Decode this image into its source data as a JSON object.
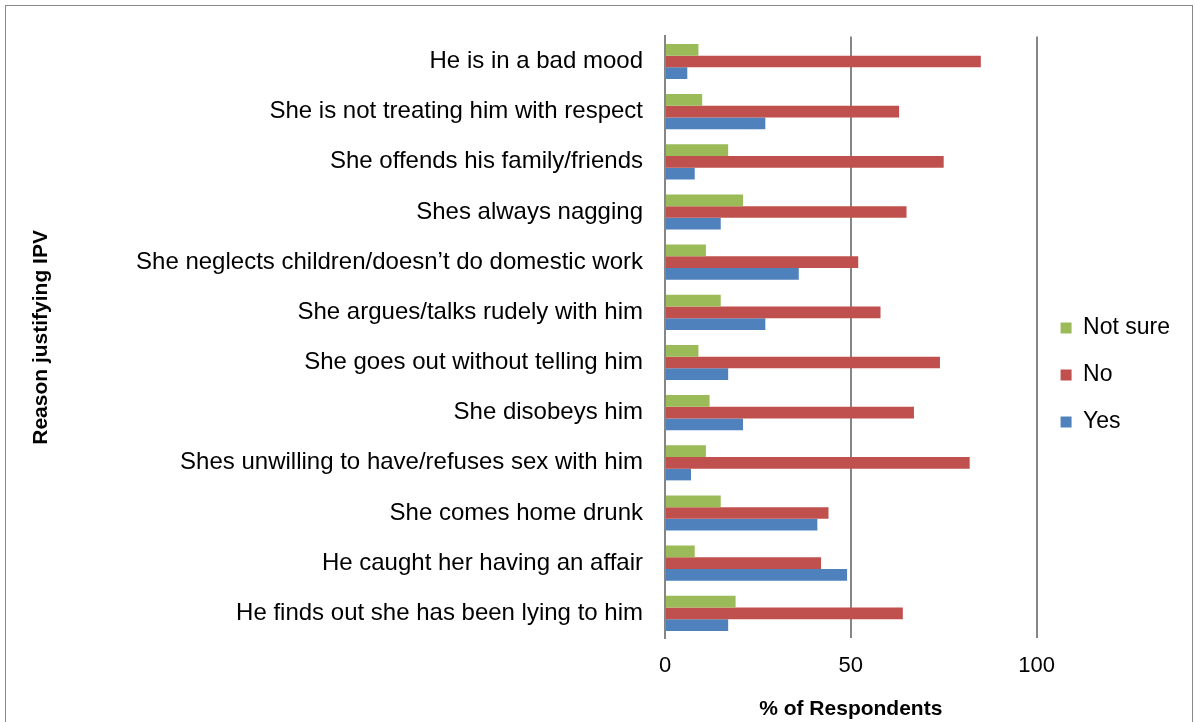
{
  "chart_data": {
    "type": "bar",
    "orientation": "horizontal",
    "xlabel": "% of Respondents",
    "ylabel": "Reason justifying IPV",
    "categories": [
      "He is in a bad mood",
      "She is not treating him with respect",
      "She offends his family/friends",
      "Shes always nagging",
      "She neglects children/doesn’t do domestic work",
      "She argues/talks rudely with him",
      "She goes out without telling him",
      "She disobeys him",
      "Shes unwilling to have/refuses sex with him",
      "She comes home drunk",
      "He caught her having an affair",
      "He finds out she has been lying to him"
    ],
    "series": [
      {
        "name": "Not sure",
        "color": "#9bbb59",
        "values": [
          9,
          10,
          17,
          21,
          11,
          15,
          9,
          12,
          11,
          15,
          8,
          19
        ]
      },
      {
        "name": "No",
        "color": "#c0504d",
        "values": [
          85,
          63,
          75,
          65,
          52,
          58,
          74,
          67,
          82,
          44,
          42,
          64
        ]
      },
      {
        "name": "Yes",
        "color": "#4f81bd",
        "values": [
          6,
          27,
          8,
          15,
          36,
          27,
          17,
          21,
          7,
          41,
          49,
          17
        ]
      }
    ],
    "xlim": [
      0,
      100
    ],
    "xticks": [
      0,
      50,
      100
    ],
    "grid": "x",
    "legend": "right"
  }
}
